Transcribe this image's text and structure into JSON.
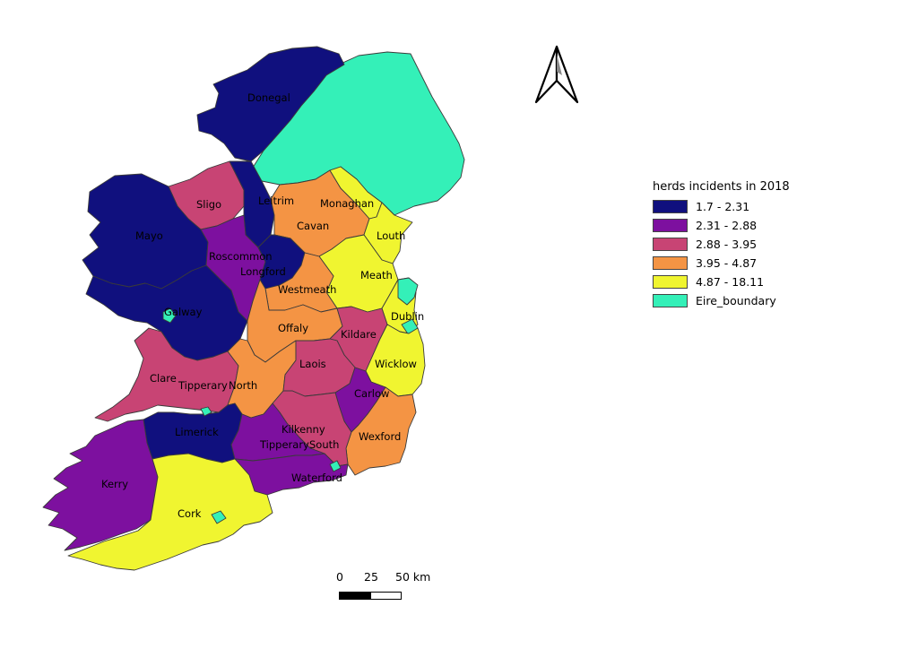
{
  "legend": {
    "title": "herds incidents in 2018",
    "classes": [
      {
        "label": "1.7 - 2.31",
        "color": "#10107e"
      },
      {
        "label": "2.31 - 2.88",
        "color": "#7d109f"
      },
      {
        "label": "2.88 - 3.95",
        "color": "#c84474"
      },
      {
        "label": "3.95 - 4.87",
        "color": "#f49444"
      },
      {
        "label": "4.87 - 18.11",
        "color": "#f0f530"
      },
      {
        "label": "Eire_boundary",
        "color": "#34f0b8"
      }
    ]
  },
  "scale_bar": {
    "labels": [
      "0",
      "25",
      "50 km"
    ]
  },
  "north_arrow": {
    "icon": "north-arrow-icon"
  },
  "counties": [
    {
      "name": "Donegal",
      "class": 0
    },
    {
      "name": "Leitrim",
      "class": 0
    },
    {
      "name": "Mayo",
      "class": 0
    },
    {
      "name": "Galway",
      "class": 0
    },
    {
      "name": "Longford",
      "class": 0
    },
    {
      "name": "Limerick",
      "class": 0
    },
    {
      "name": "Sligo",
      "class": 2
    },
    {
      "name": "Roscommon",
      "class": 1
    },
    {
      "name": "Cavan",
      "class": 3
    },
    {
      "name": "Monaghan",
      "class": 4
    },
    {
      "name": "Louth",
      "class": 4
    },
    {
      "name": "Meath",
      "class": 4
    },
    {
      "name": "Westmeath",
      "class": 3
    },
    {
      "name": "Dublin",
      "class": 4
    },
    {
      "name": "Offaly",
      "class": 3
    },
    {
      "name": "Kildare",
      "class": 2
    },
    {
      "name": "Wicklow",
      "class": 4
    },
    {
      "name": "Laois",
      "class": 2
    },
    {
      "name": "Clare",
      "class": 2
    },
    {
      "name": "Tipperary North",
      "class": 3
    },
    {
      "name": "Carlow",
      "class": 1
    },
    {
      "name": "Kilkenny",
      "class": 2
    },
    {
      "name": "Tipperary South",
      "class": 1
    },
    {
      "name": "Wexford",
      "class": 3
    },
    {
      "name": "Kerry",
      "class": 1
    },
    {
      "name": "Cork",
      "class": 4
    },
    {
      "name": "Waterford",
      "class": 1
    }
  ],
  "label_texts": {
    "Donegal": "Donegal",
    "Leitrim": "Leitrim",
    "Sligo": "Sligo",
    "Monaghan": "Monaghan",
    "Mayo": "Mayo",
    "Cavan": "Cavan",
    "Roscommon": "Roscommon",
    "Louth": "Louth",
    "Longford": "Longford",
    "Meath": "Meath",
    "Westmeath": "Westmeath",
    "Galway": "Galway",
    "Dublin": "Dublin",
    "Offaly": "Offaly",
    "Kildare": "Kildare",
    "Laois": "Laois",
    "Wicklow": "Wicklow",
    "Clare": "Clare",
    "Tipperary_a": "Tipperary",
    "North": "North",
    "Carlow": "Carlow",
    "Limerick": "Limerick",
    "Kilkenny": "Kilkenny",
    "Tipperary_b": "Tipperary",
    "South": "South",
    "Wexford": "Wexford",
    "Kerry": "Kerry",
    "Waterford": "Waterford",
    "Cork": "Cork"
  }
}
